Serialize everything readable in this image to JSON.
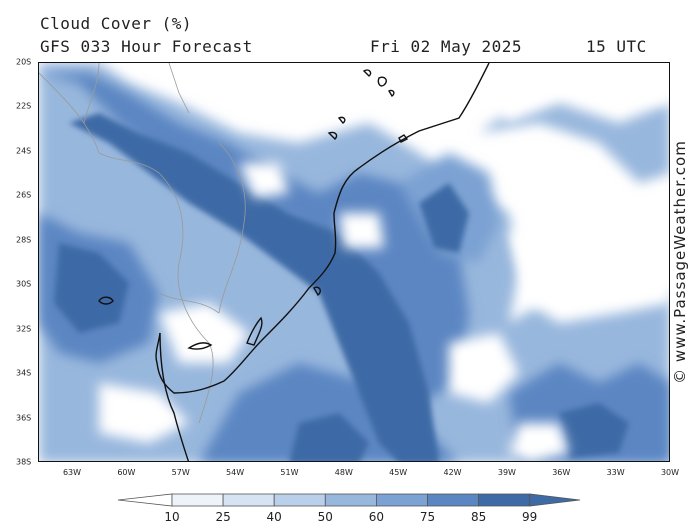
{
  "header": {
    "title": "Cloud Cover (%)",
    "forecast": "GFS 033 Hour Forecast",
    "date": "Fri 02 May 2025",
    "time": "15 UTC"
  },
  "credit": "© www.PassageWeather.com",
  "map": {
    "lat_labels": [
      "20S",
      "22S",
      "24S",
      "26S",
      "28S",
      "30S",
      "32S",
      "34S",
      "36S",
      "38S"
    ],
    "lon_labels": [
      "63W",
      "60W",
      "57W",
      "54W",
      "51W",
      "48W",
      "45W",
      "42W",
      "39W",
      "36W",
      "33W",
      "30W"
    ],
    "land_color": "#111111",
    "border_color": "#9a9a9a"
  },
  "legend": {
    "values": [
      "10",
      "25",
      "40",
      "50",
      "60",
      "75",
      "85",
      "99"
    ],
    "colors": [
      "#ffffff",
      "#eef3fa",
      "#d5e3f3",
      "#b9cfea",
      "#98b7dd",
      "#7ba2d3",
      "#5b86c2",
      "#3e6aa6"
    ]
  }
}
